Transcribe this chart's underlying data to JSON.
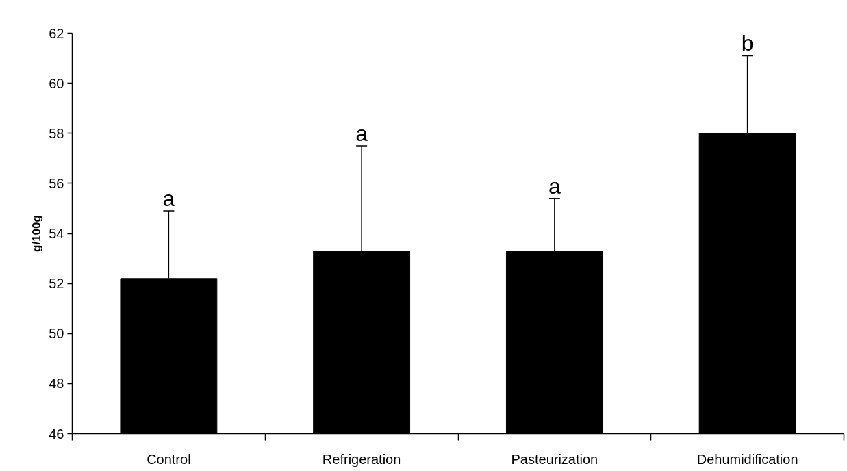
{
  "chart_data": {
    "type": "bar",
    "ylabel": "g/100g",
    "categories": [
      "Control",
      "Refrigeration",
      "Pasteurization",
      "Dehumidification"
    ],
    "values": [
      52.2,
      53.3,
      53.3,
      58.0
    ],
    "errors": [
      [
        52.2,
        54.9
      ],
      [
        53.3,
        57.5
      ],
      [
        53.3,
        55.4
      ],
      [
        58.0,
        61.1
      ]
    ],
    "color": "#000000",
    "ylim": [
      46,
      62
    ],
    "yticks": [
      46,
      48,
      50,
      52,
      54,
      56,
      58,
      60,
      62
    ],
    "grid": false,
    "annotations": [
      {
        "text": "a",
        "x": "Control",
        "y": 54.9
      },
      {
        "text": "a",
        "x": "Refrigeration",
        "y": 57.5
      },
      {
        "text": "a",
        "x": "Pasteurization",
        "y": 55.4
      },
      {
        "text": "b",
        "x": "Dehumidification",
        "y": 61.1
      }
    ]
  }
}
